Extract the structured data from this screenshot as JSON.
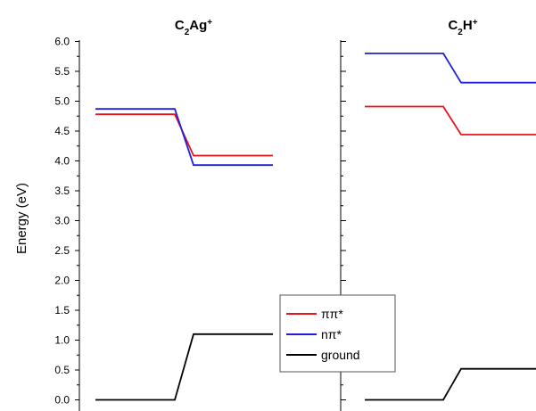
{
  "chart_data": {
    "type": "line",
    "ylabel": "Energy (eV)",
    "ylim": [
      -0.1,
      6.0
    ],
    "y_ticks": [
      "0.0",
      "0.5",
      "1.0",
      "1.5",
      "2.0",
      "2.5",
      "3.0",
      "3.5",
      "4.0",
      "4.5",
      "5.0",
      "5.5",
      "6.0"
    ],
    "grid": false,
    "legend": {
      "position": "bottom-center",
      "entries": [
        {
          "key": "pipi",
          "label": "ππ*",
          "color": "#e8141b"
        },
        {
          "key": "npi",
          "label": "nπ*",
          "color": "#1f1fdb"
        },
        {
          "key": "ground",
          "label": "ground",
          "color": "#000000"
        }
      ]
    },
    "panels": [
      {
        "title": {
          "main": "C",
          "sub": "2",
          "rest": "Ag",
          "sup": "+"
        },
        "series": [
          {
            "key": "pipi",
            "values": [
              4.78,
              4.78,
              4.09,
              4.09
            ]
          },
          {
            "key": "npi",
            "values": [
              4.87,
              4.87,
              3.93,
              3.93
            ]
          },
          {
            "key": "ground",
            "values": [
              0.0,
              0.0,
              1.1,
              1.1
            ]
          }
        ]
      },
      {
        "title": {
          "main": "C",
          "sub": "2",
          "rest": "H",
          "sup": "+"
        },
        "series": [
          {
            "key": "pipi",
            "values": [
              4.91,
              4.91,
              4.44,
              4.44
            ]
          },
          {
            "key": "npi",
            "values": [
              5.8,
              5.8,
              5.31,
              5.31
            ]
          },
          {
            "key": "ground",
            "values": [
              0.0,
              0.0,
              0.52,
              0.52
            ]
          }
        ]
      }
    ]
  }
}
